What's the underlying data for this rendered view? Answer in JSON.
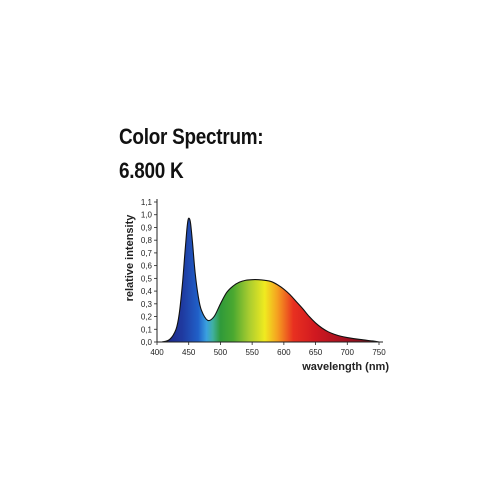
{
  "chart_data": {
    "type": "area",
    "title": "Color Spectrum:",
    "subtitle": "6.800 K",
    "xlabel": "wavelength  (nm)",
    "ylabel": "relative intensity",
    "xlim": [
      400,
      750
    ],
    "ylim": [
      0,
      1.1
    ],
    "x_ticks": [
      400,
      450,
      500,
      550,
      600,
      650,
      700,
      750
    ],
    "x_tick_labels": [
      "400",
      "450",
      "500",
      "550",
      "600",
      "650",
      "700",
      "750"
    ],
    "y_ticks": [
      0,
      0.1,
      0.2,
      0.3,
      0.4,
      0.5,
      0.6,
      0.7,
      0.8,
      0.9,
      1.0,
      1.1
    ],
    "y_tick_labels": [
      "0,0",
      "0,1",
      "0,2",
      "0,3",
      "0,4",
      "0,5",
      "0,6",
      "0,7",
      "0,8",
      "0,9",
      "1,0",
      "1,1"
    ],
    "grid": false,
    "fill": "visible-spectrum-gradient",
    "series": [
      {
        "x": [
          408,
          420,
          430,
          435,
          440,
          444,
          447,
          449,
          451,
          453,
          456,
          460,
          465,
          470,
          480,
          490,
          500,
          510,
          520,
          530,
          540,
          550,
          560,
          570,
          580,
          590,
          600,
          610,
          620,
          630,
          640,
          650,
          660,
          670,
          680,
          690,
          700,
          720,
          740,
          750
        ],
        "values": [
          0.0,
          0.02,
          0.1,
          0.22,
          0.45,
          0.7,
          0.88,
          0.96,
          0.97,
          0.93,
          0.78,
          0.55,
          0.36,
          0.25,
          0.17,
          0.2,
          0.3,
          0.39,
          0.44,
          0.47,
          0.485,
          0.49,
          0.49,
          0.485,
          0.475,
          0.45,
          0.415,
          0.37,
          0.315,
          0.26,
          0.2,
          0.15,
          0.11,
          0.08,
          0.06,
          0.045,
          0.035,
          0.02,
          0.008,
          0.0
        ]
      }
    ]
  }
}
